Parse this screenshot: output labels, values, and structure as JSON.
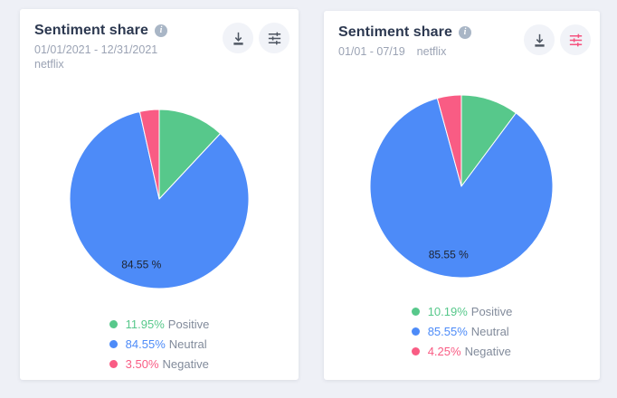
{
  "colors": {
    "page_bg": "#eef0f6",
    "card_bg": "#ffffff",
    "positive": "#57c88b",
    "neutral": "#4d8bf8",
    "negative": "#f95c84",
    "title_text": "#2c3850",
    "muted_text": "#9ba3b4",
    "legend_label_text": "#828b9b",
    "icon_gray": "#4e5662",
    "icon_pink": "#f5537f",
    "icon_circle_bg": "#f1f3f8",
    "info_icon_bg": "#a9b6c6",
    "pie_label_text": "#1e2430"
  },
  "cards": [
    {
      "title": "Sentiment share",
      "date_range": "01/01/2021 - 12/31/2021",
      "query": "netflix",
      "pie_label": "84.55 %",
      "download_icon_color": "#4e5662",
      "settings_icon_color": "#4e5662",
      "legend": [
        {
          "pct": "11.95%",
          "label": "Positive"
        },
        {
          "pct": "84.55%",
          "label": "Neutral"
        },
        {
          "pct": "3.50%",
          "label": "Negative"
        }
      ]
    },
    {
      "title": "Sentiment share",
      "date_range": "01/01 - 07/19",
      "query": "netflix",
      "pie_label": "85.55 %",
      "download_icon_color": "#4e5662",
      "settings_icon_color": "#f5537f",
      "legend": [
        {
          "pct": "10.19%",
          "label": "Positive"
        },
        {
          "pct": "85.55%",
          "label": "Neutral"
        },
        {
          "pct": "4.25%",
          "label": "Negative"
        }
      ]
    }
  ],
  "chart_data": [
    {
      "type": "pie",
      "title": "Sentiment share",
      "period": "01/01/2021 - 12/31/2021",
      "query": "netflix",
      "start_angle_deg": 0,
      "direction": "clockwise",
      "legend_position": "bottom",
      "center_label": "84.55 %",
      "slices": [
        {
          "label": "Positive",
          "value": 11.95,
          "color": "#57c88b"
        },
        {
          "label": "Neutral",
          "value": 84.55,
          "color": "#4d8bf8"
        },
        {
          "label": "Negative",
          "value": 3.5,
          "color": "#f95c84"
        }
      ]
    },
    {
      "type": "pie",
      "title": "Sentiment share",
      "period": "01/01 - 07/19",
      "query": "netflix",
      "start_angle_deg": 0,
      "direction": "clockwise",
      "legend_position": "bottom",
      "center_label": "85.55 %",
      "slices": [
        {
          "label": "Positive",
          "value": 10.19,
          "color": "#57c88b"
        },
        {
          "label": "Neutral",
          "value": 85.55,
          "color": "#4d8bf8"
        },
        {
          "label": "Negative",
          "value": 4.25,
          "color": "#f95c84"
        }
      ]
    }
  ]
}
